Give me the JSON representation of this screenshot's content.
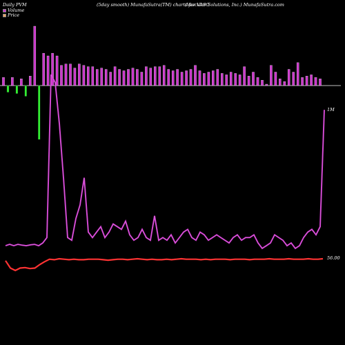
{
  "header": {
    "left": "Daily PVM",
    "center": "(5day smooth) MunafaSutra(TM) charts for VASC",
    "right": "(Vascular Solutions, Inc.) MunafaSutra.com"
  },
  "legend": [
    {
      "label": "Volume",
      "color": "#cc33cc"
    },
    {
      "label": "Price",
      "color": "#f4a460"
    }
  ],
  "chart_data": {
    "type": "bar",
    "volume_bars": {
      "values": [
        6,
        5,
        6,
        6,
        5,
        8,
        7,
        44,
        40,
        24,
        22,
        24,
        22,
        15,
        16,
        16,
        13,
        16,
        15,
        14,
        14,
        12,
        13,
        12,
        10,
        14,
        12,
        11,
        12,
        13,
        12,
        10,
        14,
        13,
        14,
        14,
        15,
        12,
        11,
        12,
        10,
        11,
        12,
        15,
        11,
        9,
        10,
        11,
        12,
        9,
        8,
        10,
        9,
        8,
        14,
        7,
        10,
        6,
        4,
        1,
        15,
        10,
        5,
        3,
        12,
        10,
        17,
        6,
        7,
        8,
        6,
        5
      ],
      "direction": [
        "up",
        "dn",
        "up",
        "dn",
        "up",
        "dn",
        "up",
        "up",
        "dn",
        "up",
        "up",
        "up",
        "up",
        "up",
        "up",
        "up",
        "up",
        "up",
        "up",
        "up",
        "up",
        "up",
        "up",
        "up",
        "up",
        "up",
        "up",
        "up",
        "up",
        "up",
        "up",
        "up",
        "up",
        "up",
        "up",
        "up",
        "up",
        "up",
        "up",
        "up",
        "up",
        "up",
        "up",
        "up",
        "up",
        "up",
        "up",
        "up",
        "up",
        "up",
        "up",
        "up",
        "up",
        "up",
        "up",
        "up",
        "up",
        "up",
        "up",
        "up",
        "up",
        "up",
        "up",
        "up",
        "up",
        "up",
        "up",
        "up",
        "up",
        "up",
        "up",
        "up"
      ],
      "colors": {
        "up": "#cc33cc",
        "down": "#33ee33"
      }
    },
    "volume_line": {
      "values": [
        15,
        15.5,
        15,
        15.5,
        15.2,
        15,
        15.3,
        15.5,
        15,
        16,
        18,
        78,
        75,
        60,
        40,
        18,
        17,
        25,
        30,
        40,
        20,
        18,
        20,
        22,
        18,
        20,
        23,
        22,
        21,
        24,
        19,
        17,
        18,
        21,
        18,
        17,
        26,
        17,
        18,
        17,
        19,
        16,
        18,
        20,
        21,
        18,
        17,
        20,
        19,
        17,
        18,
        19,
        18,
        17,
        16,
        18,
        19,
        17,
        18,
        18,
        19,
        16,
        14,
        15,
        16,
        19,
        18,
        17,
        15,
        16,
        14,
        15,
        18,
        20,
        21,
        19,
        22,
        65
      ],
      "color": "#cc33cc",
      "label": "1M"
    },
    "price": {
      "values": [
        56.0,
        54.5,
        54.0,
        54.5,
        54.6,
        54.4,
        54.5,
        55.2,
        55.8,
        56.3,
        56.2,
        56.4,
        56.3,
        56.2,
        56.3,
        56.2,
        56.2,
        56.3,
        56.3,
        56.3,
        56.2,
        56.1,
        56.2,
        56.3,
        56.3,
        56.2,
        56.3,
        56.4,
        56.3,
        56.2,
        56.3,
        56.2,
        56.2,
        56.3,
        56.2,
        56.3,
        56.4,
        56.3,
        56.3,
        56.3,
        56.2,
        56.3,
        56.2,
        56.3,
        56.3,
        56.3,
        56.2,
        56.3,
        56.3,
        56.3,
        56.2,
        56.3,
        56.3,
        56.3,
        56.4,
        56.3,
        56.3,
        56.3,
        56.4,
        56.3,
        56.3,
        56.3,
        56.4,
        56.3,
        56.3,
        56.4
      ],
      "color": "#ff3333",
      "label": "56.00"
    }
  }
}
